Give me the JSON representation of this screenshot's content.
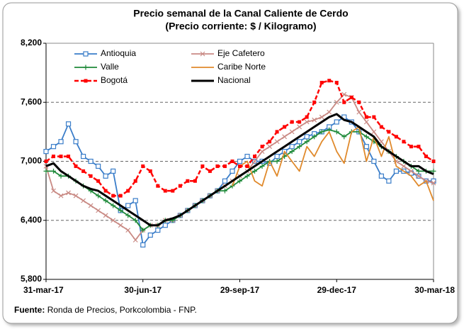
{
  "chart_data": {
    "type": "line",
    "title": "Precio semanal de la Canal Caliente de Cerdo",
    "subtitle": "(Precio corriente: $ / Kilogramo)",
    "categories": [
      "31-mar-17",
      null,
      null,
      null,
      null,
      null,
      null,
      null,
      null,
      null,
      null,
      null,
      null,
      "30-jun-17",
      null,
      null,
      null,
      null,
      null,
      null,
      null,
      null,
      null,
      null,
      null,
      null,
      "29-sep-17",
      null,
      null,
      null,
      null,
      null,
      null,
      null,
      null,
      null,
      null,
      null,
      null,
      "29-dec-17",
      null,
      null,
      null,
      null,
      null,
      null,
      null,
      null,
      null,
      null,
      null,
      null,
      "30-mar-18"
    ],
    "ylim": [
      5800,
      8200
    ],
    "yticks": [
      {
        "value": 5800,
        "label": "5,800"
      },
      {
        "value": 6400,
        "label": "6,400"
      },
      {
        "value": 7000,
        "label": "7,000"
      },
      {
        "value": 7600,
        "label": "7,600"
      },
      {
        "value": 8200,
        "label": "8,200"
      }
    ],
    "grid": true,
    "legend": "top-left",
    "series": [
      {
        "name": "Antioquia",
        "color": "#3a7dc9",
        "marker": "square-open",
        "line_style": "solid",
        "values": [
          7100,
          7150,
          7200,
          7380,
          7200,
          7050,
          7000,
          6950,
          6850,
          6900,
          6500,
          6550,
          6600,
          6150,
          6250,
          6300,
          6350,
          6400,
          6450,
          6500,
          6550,
          6600,
          6650,
          6700,
          6800,
          6900,
          7000,
          7050,
          7000,
          7000,
          6980,
          7050,
          7100,
          7150,
          7200,
          7250,
          7280,
          7300,
          7350,
          7400,
          7450,
          7400,
          7300,
          7150,
          7000,
          6850,
          6800,
          6900,
          6900,
          6880,
          6850,
          6800,
          6800
        ]
      },
      {
        "name": "Eje Cafetero",
        "color": "#c98a84",
        "marker": "x",
        "line_style": "solid",
        "values": [
          6950,
          6700,
          6650,
          6680,
          6650,
          6600,
          6550,
          6500,
          6450,
          6400,
          6350,
          6300,
          6200,
          6300,
          6350,
          6350,
          6400,
          6400,
          6450,
          6500,
          6550,
          6600,
          6650,
          6700,
          6750,
          6800,
          6850,
          6900,
          7000,
          7100,
          7150,
          7200,
          7250,
          7300,
          7350,
          7400,
          7420,
          7450,
          7500,
          7600,
          7680,
          7650,
          7500,
          7400,
          7300,
          7200,
          7100,
          7000,
          6950,
          6900,
          6850,
          6800,
          6780
        ]
      },
      {
        "name": "Valle",
        "color": "#1f8a3a",
        "marker": "plus",
        "line_style": "solid",
        "values": [
          6900,
          6900,
          6850,
          6850,
          6800,
          6750,
          6700,
          6650,
          6600,
          6550,
          6500,
          6450,
          6400,
          6300,
          6350,
          6350,
          6400,
          6400,
          6450,
          6500,
          6550,
          6600,
          6650,
          6700,
          6700,
          6750,
          6800,
          6850,
          6900,
          6950,
          7000,
          7000,
          7050,
          7100,
          7150,
          7200,
          7250,
          7300,
          7320,
          7300,
          7250,
          7300,
          7300,
          7250,
          7200,
          7150,
          7100,
          7050,
          7000,
          6950,
          6900,
          6900,
          6900
        ]
      },
      {
        "name": "Caribe Norte",
        "color": "#e08a2c",
        "marker": "none",
        "line_style": "solid",
        "values": [
          null,
          null,
          null,
          null,
          null,
          null,
          null,
          null,
          null,
          null,
          null,
          null,
          null,
          null,
          null,
          null,
          null,
          null,
          null,
          null,
          null,
          null,
          null,
          null,
          null,
          6750,
          6950,
          7000,
          6800,
          6750,
          7000,
          6850,
          7100,
          7000,
          6900,
          7150,
          7050,
          7200,
          7300,
          7100,
          6980,
          7300,
          7350,
          7000,
          7250,
          7050,
          7250,
          6950,
          6900,
          6850,
          6750,
          6800,
          6600
        ]
      },
      {
        "name": "Bogotá",
        "color": "#ff0000",
        "marker": "square",
        "line_style": "dashed",
        "values": [
          7000,
          7050,
          7050,
          7050,
          6950,
          6900,
          6850,
          6800,
          6700,
          6650,
          6650,
          6700,
          6800,
          6950,
          6900,
          6750,
          6700,
          6700,
          6750,
          6800,
          6800,
          6950,
          6900,
          6950,
          6950,
          7000,
          6950,
          6950,
          7050,
          7150,
          7200,
          7300,
          7350,
          7400,
          7400,
          7450,
          7600,
          7800,
          7820,
          7800,
          7600,
          7650,
          7600,
          7450,
          7450,
          7350,
          7300,
          7250,
          7200,
          7150,
          7150,
          7050,
          7000
        ]
      },
      {
        "name": "Nacional",
        "color": "#000000",
        "marker": "none",
        "line_style": "bold",
        "values": [
          6950,
          6980,
          6900,
          6850,
          6800,
          6750,
          6720,
          6700,
          6650,
          6600,
          6550,
          6500,
          6450,
          6400,
          6350,
          6350,
          6400,
          6420,
          6450,
          6500,
          6550,
          6600,
          6650,
          6700,
          6750,
          6800,
          6850,
          6900,
          6950,
          7000,
          7050,
          7100,
          7150,
          7200,
          7250,
          7300,
          7350,
          7400,
          7450,
          7480,
          7420,
          7400,
          7350,
          7300,
          7250,
          7150,
          7100,
          7050,
          7000,
          6950,
          6950,
          6900,
          6870
        ]
      }
    ],
    "source": {
      "label": "Fuente:",
      "text": "Ronda de Precios, Porkcolombia  - FNP."
    }
  }
}
